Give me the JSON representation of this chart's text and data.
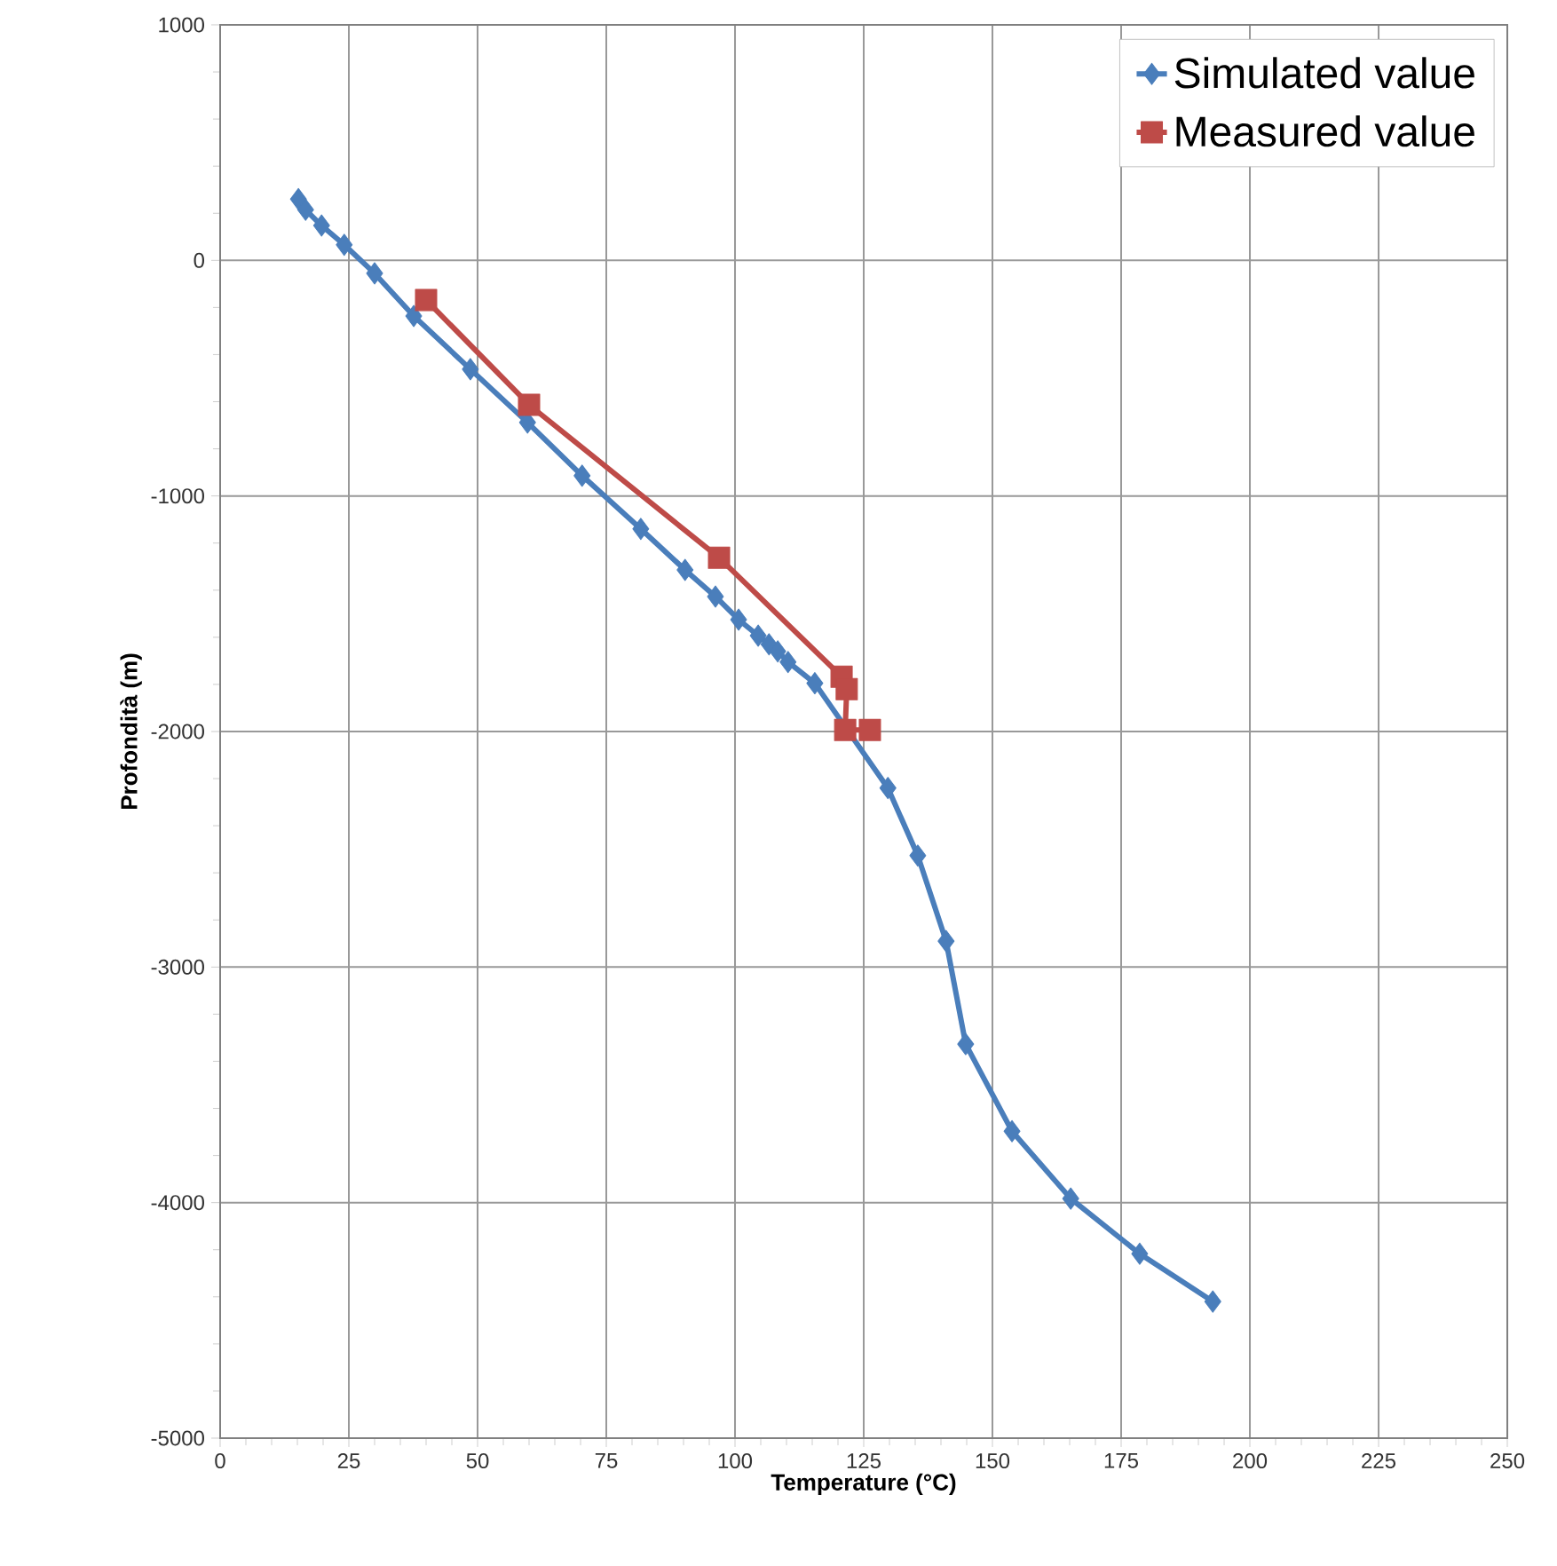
{
  "chart_data": {
    "type": "line",
    "xlabel": "Temperature (°C)",
    "ylabel": "Profondità (m)",
    "xlim": [
      0,
      250
    ],
    "xticks": [
      0,
      25,
      50,
      75,
      100,
      125,
      150,
      175,
      200,
      225,
      250
    ],
    "ylim": [
      -5000,
      1000
    ],
    "yticks": [
      -5000,
      -4000,
      -3000,
      -2000,
      -1000,
      0,
      1000
    ],
    "grid": true,
    "legend": "top right",
    "series": [
      {
        "name": "Simulated value",
        "color": "#4a7ebb",
        "marker": "diamond",
        "x": [
          15.2,
          16.6,
          19.7,
          24.1,
          30,
          37.6,
          48.6,
          59.7,
          70.3,
          81.7,
          90.3,
          96.2,
          100.7,
          104.5,
          106.6,
          108.3,
          110.3,
          115.5,
          129.7,
          135.5,
          141,
          144.8,
          153.8,
          165.2,
          178.6,
          192.8
        ],
        "values": [
          260,
          215,
          148,
          66,
          -55,
          -236,
          -462,
          -688,
          -914,
          -1140,
          -1314,
          -1427,
          -1525,
          -1593,
          -1630,
          -1660,
          -1705,
          -1795,
          -2240,
          -2527,
          -2890,
          -3327,
          -3697,
          -3983,
          -4217,
          -4420
        ]
      },
      {
        "name": "Measured value",
        "color": "#be4b48",
        "marker": "square",
        "x": [
          40,
          60,
          96.9,
          120.7,
          121.7,
          121.4,
          126.2
        ],
        "values": [
          -168,
          -613,
          -1262,
          -1767,
          -1820,
          -1993,
          -1993
        ]
      }
    ]
  }
}
